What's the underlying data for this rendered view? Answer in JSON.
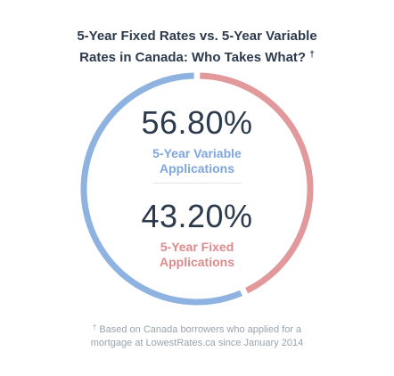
{
  "title": {
    "line1": "5-Year Fixed Rates vs. 5-Year Variable",
    "line2": "Rates in Canada: Who Takes What?",
    "mark": "†"
  },
  "colors": {
    "variable": "#8fb3e0",
    "fixed": "#e2999b",
    "text": "#2b3a4d",
    "variable_label": "#7ea6dc",
    "fixed_label": "#de8a8c"
  },
  "chart_data": {
    "type": "pie",
    "categories": [
      "5-Year Variable Applications",
      "5-Year Fixed Applications"
    ],
    "values": [
      56.8,
      43.2
    ],
    "unit": "%"
  },
  "variable": {
    "value": "56.80%",
    "label_line1": "5-Year Variable",
    "label_line2": "Applications"
  },
  "fixed": {
    "value": "43.20%",
    "label_line1": "5-Year Fixed",
    "label_line2": "Applications"
  },
  "footnote": {
    "mark": "†",
    "line1": "Based on Canada borrowers who applied for a",
    "line2": "mortgage at LowestRates.ca since January 2014"
  }
}
